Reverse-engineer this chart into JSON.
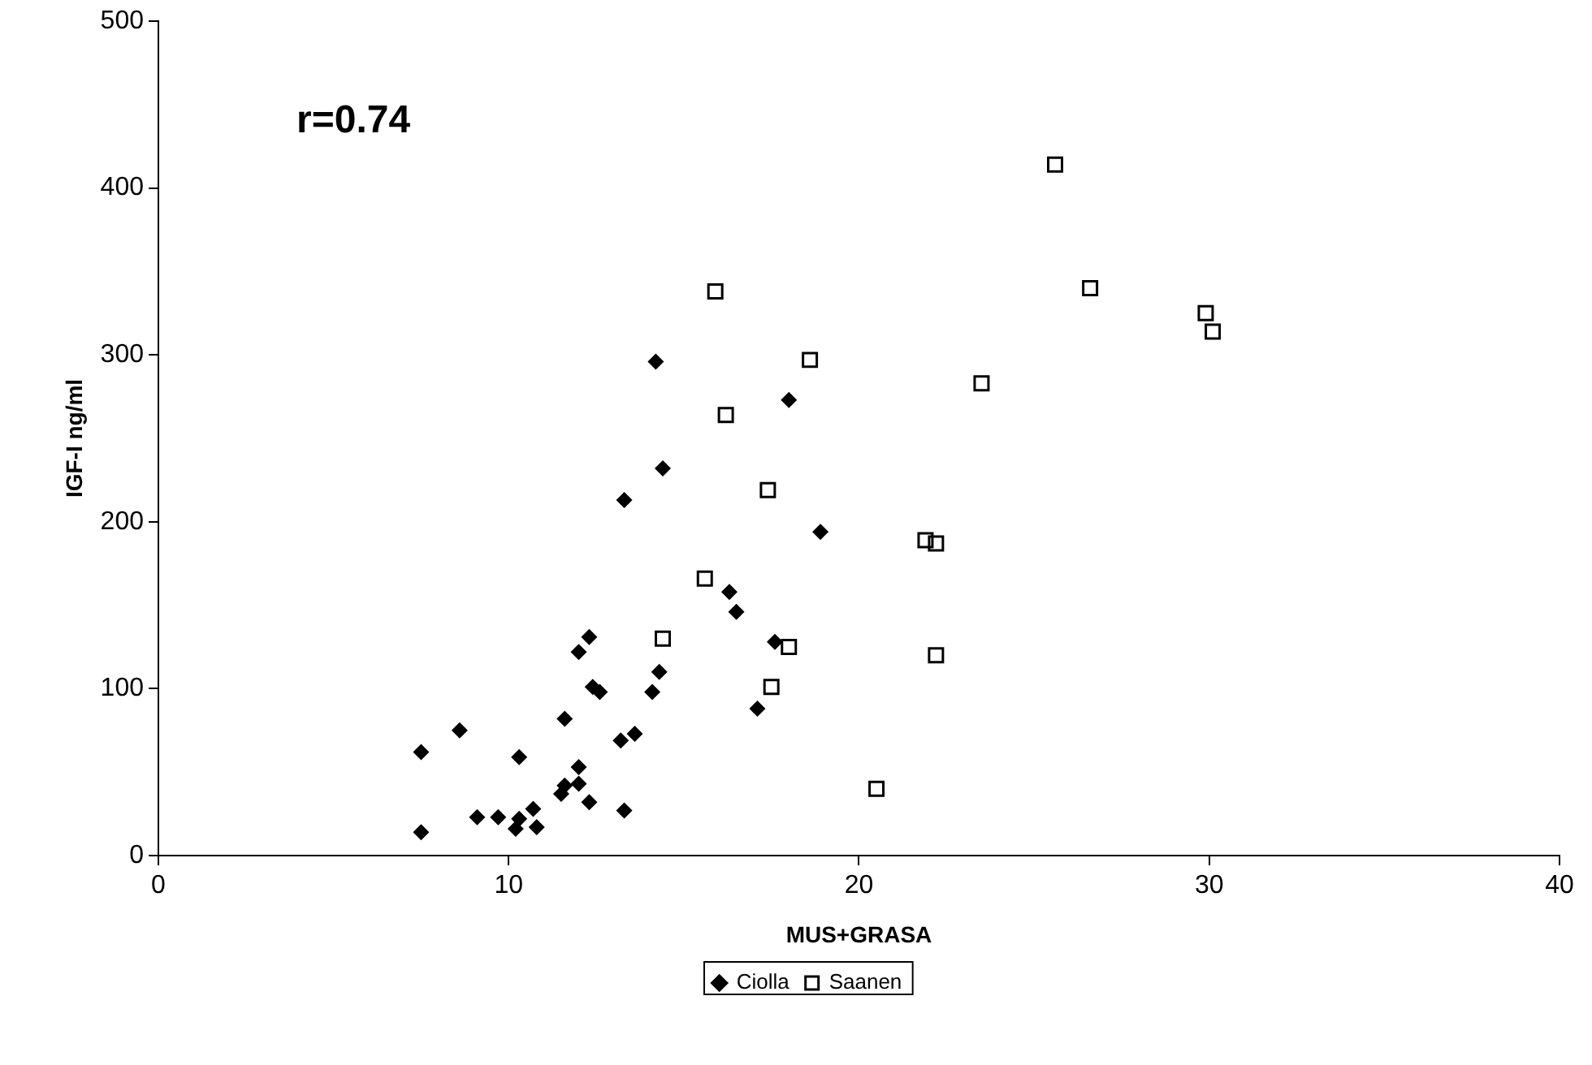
{
  "chart_data": {
    "type": "scatter",
    "xlabel": "MUS+GRASA",
    "ylabel": "IGF-I ng/ml",
    "annotations": [
      "r=0.74"
    ],
    "xlim": [
      0,
      40
    ],
    "xticks": [
      0,
      10,
      20,
      30,
      40
    ],
    "ylim": [
      0,
      500
    ],
    "yticks": [
      0,
      100,
      200,
      300,
      400,
      500
    ],
    "grid": false,
    "legend": "bottom",
    "series": [
      {
        "name": "Ciolla",
        "color": "#000000",
        "marker": "diamond",
        "x": [
          7.5,
          7.5,
          8.6,
          9.1,
          9.7,
          10.2,
          10.3,
          10.3,
          10.7,
          10.8,
          11.5,
          11.6,
          11.6,
          12.0,
          12.0,
          12.0,
          12.3,
          12.3,
          12.4,
          12.6,
          13.2,
          13.6,
          13.3,
          13.3,
          14.1,
          14.3,
          14.4,
          14.2,
          18.0,
          18.9,
          16.3,
          16.5,
          17.6,
          17.1
        ],
        "values": [
          14,
          62,
          75,
          23,
          23,
          16,
          22,
          59,
          28,
          17,
          37,
          42,
          82,
          43,
          53,
          122,
          131,
          32,
          101,
          98,
          69,
          73,
          27,
          213,
          98,
          110,
          232,
          296,
          273,
          194,
          158,
          146,
          128,
          88
        ]
      },
      {
        "name": "Saanen",
        "color": "#000000",
        "marker": "square",
        "x": [
          25.6,
          15.9,
          26.6,
          29.9,
          30.1,
          18.6,
          23.5,
          16.2,
          17.4,
          21.9,
          22.2,
          15.6,
          14.4,
          18.0,
          22.2,
          17.5,
          20.5
        ],
        "values": [
          414,
          338,
          340,
          325,
          314,
          297,
          283,
          264,
          219,
          189,
          187,
          166,
          130,
          125,
          120,
          101,
          40
        ]
      }
    ]
  }
}
